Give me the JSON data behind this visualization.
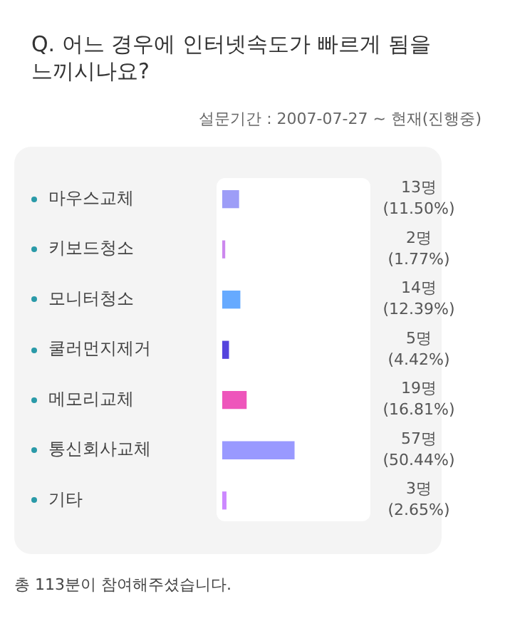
{
  "chart_data": {
    "type": "bar",
    "orientation": "horizontal",
    "title": "Q. 어느 경우에 인터넷속도가 빠르게 됨을 느끼시나요?",
    "subtitle": "설문기간 : 2007-07-27 ~ 현재(진행중)",
    "categories": [
      "마우스교체",
      "키보드청소",
      "모니터청소",
      "쿨러먼지제거",
      "메모리교체",
      "통신회사교체",
      "기타"
    ],
    "values": [
      11.5,
      1.77,
      12.39,
      4.42,
      16.81,
      50.44,
      2.65
    ],
    "value_labels": [
      "13명\n(11.50%)",
      "2명\n(1.77%)",
      "14명\n(12.39%)",
      "5명\n(4.42%)",
      "19명\n(16.81%)",
      "57명\n(50.44%)",
      "3명\n(2.65%)"
    ],
    "colors": [
      "#9d9df7",
      "#cc88ee",
      "#66aaff",
      "#5544dd",
      "#ee55bb",
      "#9999ff",
      "#cc88ff"
    ],
    "xlim": [
      0,
      100
    ],
    "annotations": [
      "총 113분이 참여해주셨습니다."
    ],
    "grid": false,
    "legend": false
  }
}
